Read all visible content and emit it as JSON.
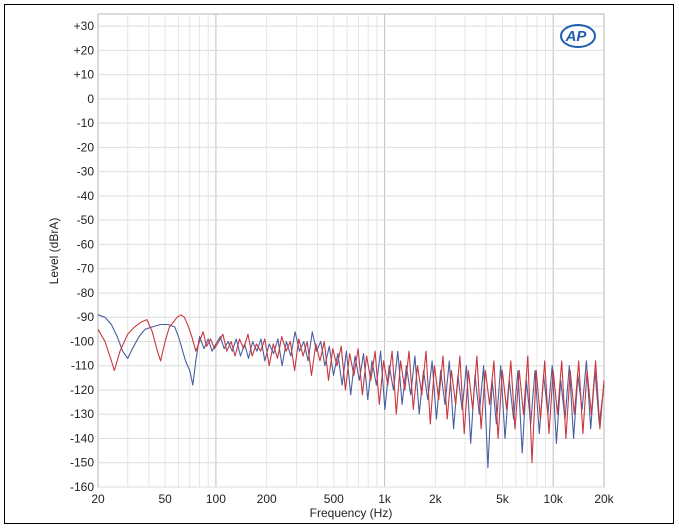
{
  "chart_data": {
    "type": "line",
    "title": "",
    "xlabel": "Frequency (Hz)",
    "ylabel": "Level (dBrA)",
    "x_scale": "log",
    "xlim": [
      20,
      20000
    ],
    "ylim": [
      -160,
      35
    ],
    "grid": true,
    "x_ticks": [
      {
        "value": 20,
        "label": "20"
      },
      {
        "value": 50,
        "label": "50"
      },
      {
        "value": 100,
        "label": "100"
      },
      {
        "value": 200,
        "label": "200"
      },
      {
        "value": 500,
        "label": "500"
      },
      {
        "value": 1000,
        "label": "1k"
      },
      {
        "value": 2000,
        "label": "2k"
      },
      {
        "value": 5000,
        "label": "5k"
      },
      {
        "value": 10000,
        "label": "10k"
      },
      {
        "value": 20000,
        "label": "20k"
      }
    ],
    "y_ticks": [
      {
        "value": 30,
        "label": "+30"
      },
      {
        "value": 20,
        "label": "+20"
      },
      {
        "value": 10,
        "label": "+10"
      },
      {
        "value": 0,
        "label": "0"
      },
      {
        "value": -10,
        "label": "-10"
      },
      {
        "value": -20,
        "label": "-20"
      },
      {
        "value": -30,
        "label": "-30"
      },
      {
        "value": -40,
        "label": "-40"
      },
      {
        "value": -50,
        "label": "-50"
      },
      {
        "value": -60,
        "label": "-60"
      },
      {
        "value": -70,
        "label": "-70"
      },
      {
        "value": -80,
        "label": "-80"
      },
      {
        "value": -90,
        "label": "-90"
      },
      {
        "value": -100,
        "label": "-100"
      },
      {
        "value": -110,
        "label": "-110"
      },
      {
        "value": -120,
        "label": "-120"
      },
      {
        "value": -130,
        "label": "-130"
      },
      {
        "value": -140,
        "label": "-140"
      },
      {
        "value": -150,
        "label": "-150"
      },
      {
        "value": -160,
        "label": "-160"
      }
    ],
    "series": [
      {
        "color": "#4a5fa0",
        "points": [
          [
            20,
            -89
          ],
          [
            22,
            -90
          ],
          [
            24,
            -93
          ],
          [
            26,
            -98
          ],
          [
            28,
            -104
          ],
          [
            30,
            -107
          ],
          [
            32,
            -103
          ],
          [
            35,
            -98
          ],
          [
            38,
            -95
          ],
          [
            42,
            -94
          ],
          [
            47,
            -93
          ],
          [
            52,
            -93
          ],
          [
            57,
            -94
          ],
          [
            60,
            -98
          ],
          [
            63,
            -103
          ],
          [
            66,
            -108
          ],
          [
            70,
            -112
          ],
          [
            73,
            -118
          ],
          [
            76,
            -108
          ],
          [
            80,
            -98
          ],
          [
            85,
            -103
          ],
          [
            90,
            -99
          ],
          [
            95,
            -104
          ],
          [
            100,
            -101
          ],
          [
            106,
            -98
          ],
          [
            112,
            -103
          ],
          [
            118,
            -100
          ],
          [
            125,
            -104
          ],
          [
            132,
            -99
          ],
          [
            140,
            -106
          ],
          [
            148,
            -101
          ],
          [
            156,
            -107
          ],
          [
            165,
            -100
          ],
          [
            175,
            -104
          ],
          [
            185,
            -99
          ],
          [
            195,
            -108
          ],
          [
            207,
            -101
          ],
          [
            220,
            -105
          ],
          [
            233,
            -99
          ],
          [
            247,
            -110
          ],
          [
            262,
            -100
          ],
          [
            278,
            -106
          ],
          [
            295,
            -96
          ],
          [
            313,
            -104
          ],
          [
            332,
            -100
          ],
          [
            352,
            -108
          ],
          [
            373,
            -96
          ],
          [
            395,
            -104
          ],
          [
            418,
            -100
          ],
          [
            443,
            -110
          ],
          [
            470,
            -102
          ],
          [
            498,
            -114
          ],
          [
            528,
            -105
          ],
          [
            560,
            -118
          ],
          [
            594,
            -104
          ],
          [
            630,
            -122
          ],
          [
            668,
            -106
          ],
          [
            708,
            -116
          ],
          [
            750,
            -105
          ],
          [
            795,
            -124
          ],
          [
            843,
            -108
          ],
          [
            894,
            -118
          ],
          [
            948,
            -104
          ],
          [
            1005,
            -128
          ],
          [
            1066,
            -110
          ],
          [
            1130,
            -120
          ],
          [
            1198,
            -104
          ],
          [
            1270,
            -126
          ],
          [
            1347,
            -110
          ],
          [
            1428,
            -122
          ],
          [
            1514,
            -106
          ],
          [
            1605,
            -130
          ],
          [
            1702,
            -112
          ],
          [
            1805,
            -124
          ],
          [
            1914,
            -108
          ],
          [
            2029,
            -132
          ],
          [
            2151,
            -112
          ],
          [
            2281,
            -126
          ],
          [
            2419,
            -108
          ],
          [
            2565,
            -136
          ],
          [
            2720,
            -114
          ],
          [
            2884,
            -128
          ],
          [
            3058,
            -110
          ],
          [
            3242,
            -142
          ],
          [
            3437,
            -114
          ],
          [
            3644,
            -130
          ],
          [
            3864,
            -110
          ],
          [
            4097,
            -152
          ],
          [
            4344,
            -116
          ],
          [
            4606,
            -134
          ],
          [
            4884,
            -110
          ],
          [
            5178,
            -140
          ],
          [
            5490,
            -116
          ],
          [
            5821,
            -132
          ],
          [
            6172,
            -112
          ],
          [
            6544,
            -146
          ],
          [
            6938,
            -116
          ],
          [
            7356,
            -134
          ],
          [
            7799,
            -112
          ],
          [
            8269,
            -138
          ],
          [
            8767,
            -114
          ],
          [
            9295,
            -130
          ],
          [
            9855,
            -110
          ],
          [
            10449,
            -142
          ],
          [
            11078,
            -116
          ],
          [
            11745,
            -132
          ],
          [
            12452,
            -110
          ],
          [
            13202,
            -140
          ],
          [
            13997,
            -114
          ],
          [
            14841,
            -128
          ],
          [
            15735,
            -108
          ],
          [
            16683,
            -136
          ],
          [
            17688,
            -112
          ],
          [
            18754,
            -134
          ],
          [
            20000,
            -118
          ]
        ]
      },
      {
        "color": "#c8383e",
        "points": [
          [
            20,
            -95
          ],
          [
            22,
            -100
          ],
          [
            24,
            -108
          ],
          [
            25,
            -112
          ],
          [
            27,
            -104
          ],
          [
            30,
            -97
          ],
          [
            33,
            -94
          ],
          [
            36,
            -92
          ],
          [
            39,
            -91
          ],
          [
            42,
            -96
          ],
          [
            45,
            -104
          ],
          [
            47,
            -108
          ],
          [
            50,
            -100
          ],
          [
            53,
            -94
          ],
          [
            56,
            -92
          ],
          [
            59,
            -90
          ],
          [
            62,
            -89
          ],
          [
            65,
            -90
          ],
          [
            68,
            -93
          ],
          [
            72,
            -98
          ],
          [
            76,
            -104
          ],
          [
            80,
            -100
          ],
          [
            84,
            -96
          ],
          [
            88,
            -102
          ],
          [
            93,
            -99
          ],
          [
            98,
            -103
          ],
          [
            104,
            -100
          ],
          [
            110,
            -97
          ],
          [
            116,
            -104
          ],
          [
            123,
            -100
          ],
          [
            130,
            -106
          ],
          [
            138,
            -99
          ],
          [
            146,
            -103
          ],
          [
            155,
            -97
          ],
          [
            164,
            -106
          ],
          [
            174,
            -101
          ],
          [
            184,
            -104
          ],
          [
            195,
            -99
          ],
          [
            207,
            -110
          ],
          [
            219,
            -101
          ],
          [
            232,
            -107
          ],
          [
            246,
            -98
          ],
          [
            261,
            -104
          ],
          [
            276,
            -100
          ],
          [
            293,
            -112
          ],
          [
            310,
            -99
          ],
          [
            329,
            -106
          ],
          [
            348,
            -100
          ],
          [
            369,
            -114
          ],
          [
            391,
            -101
          ],
          [
            414,
            -108
          ],
          [
            439,
            -100
          ],
          [
            465,
            -116
          ],
          [
            493,
            -103
          ],
          [
            522,
            -110
          ],
          [
            553,
            -102
          ],
          [
            586,
            -120
          ],
          [
            621,
            -105
          ],
          [
            658,
            -114
          ],
          [
            697,
            -103
          ],
          [
            739,
            -122
          ],
          [
            783,
            -106
          ],
          [
            829,
            -116
          ],
          [
            879,
            -104
          ],
          [
            931,
            -126
          ],
          [
            987,
            -108
          ],
          [
            1045,
            -118
          ],
          [
            1108,
            -104
          ],
          [
            1174,
            -130
          ],
          [
            1244,
            -108
          ],
          [
            1318,
            -120
          ],
          [
            1397,
            -104
          ],
          [
            1480,
            -128
          ],
          [
            1568,
            -110
          ],
          [
            1662,
            -122
          ],
          [
            1761,
            -104
          ],
          [
            1866,
            -134
          ],
          [
            1977,
            -110
          ],
          [
            2095,
            -124
          ],
          [
            2220,
            -106
          ],
          [
            2352,
            -132
          ],
          [
            2492,
            -112
          ],
          [
            2641,
            -126
          ],
          [
            2798,
            -106
          ],
          [
            2965,
            -138
          ],
          [
            3141,
            -112
          ],
          [
            3329,
            -128
          ],
          [
            3527,
            -106
          ],
          [
            3737,
            -136
          ],
          [
            3960,
            -112
          ],
          [
            4196,
            -126
          ],
          [
            4446,
            -108
          ],
          [
            4711,
            -140
          ],
          [
            4992,
            -112
          ],
          [
            5289,
            -128
          ],
          [
            5604,
            -108
          ],
          [
            5938,
            -136
          ],
          [
            6292,
            -112
          ],
          [
            6667,
            -130
          ],
          [
            7064,
            -106
          ],
          [
            7485,
            -150
          ],
          [
            7931,
            -112
          ],
          [
            8404,
            -132
          ],
          [
            8905,
            -108
          ],
          [
            9435,
            -138
          ],
          [
            9998,
            -112
          ],
          [
            10594,
            -130
          ],
          [
            11225,
            -108
          ],
          [
            11894,
            -140
          ],
          [
            12603,
            -112
          ],
          [
            13354,
            -130
          ],
          [
            14150,
            -108
          ],
          [
            14993,
            -138
          ],
          [
            15887,
            -112
          ],
          [
            16834,
            -130
          ],
          [
            17837,
            -108
          ],
          [
            18900,
            -136
          ],
          [
            20000,
            -116
          ]
        ]
      }
    ]
  },
  "logo_text": "AP"
}
